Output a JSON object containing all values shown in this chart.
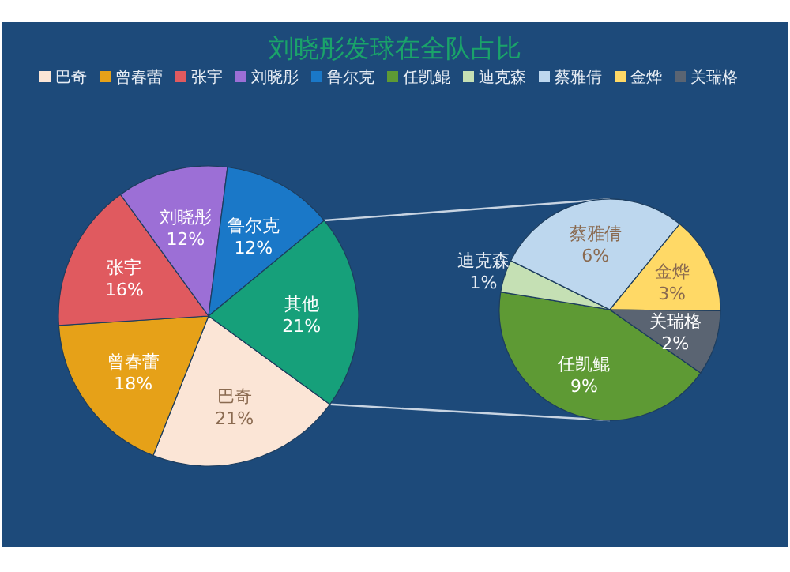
{
  "chart_data": [
    {
      "type": "pie",
      "title": "刘晓彤发球在全队占比",
      "legend": "top",
      "categories": [
        "巴奇",
        "曾春蕾",
        "张宇",
        "刘晓彤",
        "鲁尔克",
        "其他"
      ],
      "values": [
        21,
        18,
        16,
        12,
        12,
        21
      ],
      "colors": [
        "#fbe5d6",
        "#e6a118",
        "#e05a5f",
        "#9c6fd6",
        "#1a78c8",
        "#16a07a"
      ],
      "value_labels": [
        "21%",
        "18%",
        "16%",
        "12%",
        "12%",
        "21%"
      ]
    },
    {
      "type": "pie",
      "legend": "top",
      "categories": [
        "任凯鲲",
        "迪克森",
        "蔡雅倩",
        "金烨",
        "关瑞格"
      ],
      "values": [
        9,
        1,
        6,
        3,
        2
      ],
      "colors": [
        "#5e9a34",
        "#c5e0b4",
        "#bdd7ee",
        "#ffd966",
        "#5a6472"
      ],
      "value_labels": [
        "9%",
        "1%",
        "6%",
        "3%",
        "2%"
      ]
    }
  ]
}
